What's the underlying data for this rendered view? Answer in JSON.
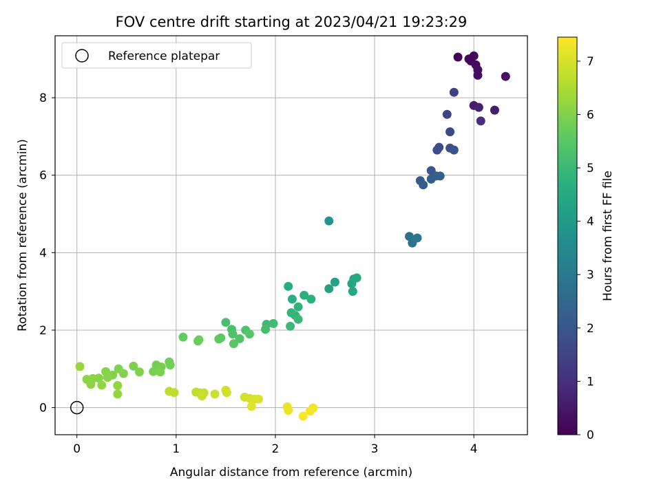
{
  "chart_data": {
    "type": "scatter",
    "title": "FOV centre drift starting at 2023/04/21 19:23:29",
    "xlabel": "Angular distance from reference (arcmin)",
    "ylabel": "Rotation from reference (arcmin)",
    "xlim": [
      -0.22,
      4.54
    ],
    "ylim": [
      -0.7,
      9.6
    ],
    "xticks": [
      0,
      1,
      2,
      3,
      4
    ],
    "xtick_labels": [
      "0",
      "1",
      "2",
      "3",
      "4"
    ],
    "yticks": [
      0,
      2,
      4,
      6,
      8
    ],
    "ytick_labels": [
      "0",
      "2",
      "4",
      "6",
      "8"
    ],
    "grid": true,
    "colormap": "viridis",
    "colorbar": {
      "label": "Hours from first FF file",
      "range": [
        0,
        7.45
      ],
      "ticks": [
        0,
        1,
        2,
        3,
        4,
        5,
        6,
        7
      ],
      "tick_labels": [
        "0",
        "1",
        "2",
        "3",
        "4",
        "5",
        "6",
        "7"
      ]
    },
    "legend": {
      "position": "top-left",
      "entries": [
        {
          "label": "Reference platepar",
          "marker": "open-circle"
        }
      ]
    },
    "reference_point": {
      "x": 0,
      "y": 0
    },
    "points": [
      {
        "x": 3.84,
        "y": 9.05,
        "t": 0.05
      },
      {
        "x": 3.95,
        "y": 9.0,
        "t": 0.1
      },
      {
        "x": 4.0,
        "y": 9.08,
        "t": 0.12
      },
      {
        "x": 3.97,
        "y": 8.95,
        "t": 0.15
      },
      {
        "x": 4.02,
        "y": 8.85,
        "t": 0.2
      },
      {
        "x": 4.04,
        "y": 8.72,
        "t": 0.25
      },
      {
        "x": 4.04,
        "y": 8.58,
        "t": 0.3
      },
      {
        "x": 4.32,
        "y": 8.55,
        "t": 0.35
      },
      {
        "x": 4.21,
        "y": 7.68,
        "t": 0.55
      },
      {
        "x": 4.0,
        "y": 7.8,
        "t": 0.6
      },
      {
        "x": 4.05,
        "y": 7.75,
        "t": 0.7
      },
      {
        "x": 4.07,
        "y": 7.4,
        "t": 1.0
      },
      {
        "x": 3.8,
        "y": 8.14,
        "t": 1.4
      },
      {
        "x": 3.73,
        "y": 7.57,
        "t": 1.5
      },
      {
        "x": 3.76,
        "y": 7.12,
        "t": 1.6
      },
      {
        "x": 3.65,
        "y": 6.72,
        "t": 1.7
      },
      {
        "x": 3.63,
        "y": 6.65,
        "t": 1.75
      },
      {
        "x": 3.76,
        "y": 6.7,
        "t": 1.8
      },
      {
        "x": 3.8,
        "y": 6.65,
        "t": 1.85
      },
      {
        "x": 3.57,
        "y": 6.12,
        "t": 2.0
      },
      {
        "x": 3.46,
        "y": 5.86,
        "t": 2.1
      },
      {
        "x": 3.49,
        "y": 5.75,
        "t": 2.15
      },
      {
        "x": 3.57,
        "y": 5.9,
        "t": 2.2
      },
      {
        "x": 3.62,
        "y": 5.98,
        "t": 2.25
      },
      {
        "x": 3.66,
        "y": 5.98,
        "t": 2.3
      },
      {
        "x": 3.35,
        "y": 4.42,
        "t": 2.8
      },
      {
        "x": 3.38,
        "y": 4.25,
        "t": 2.85
      },
      {
        "x": 3.43,
        "y": 4.38,
        "t": 2.9
      },
      {
        "x": 2.54,
        "y": 4.82,
        "t": 3.9
      },
      {
        "x": 2.54,
        "y": 3.07,
        "t": 4.2
      },
      {
        "x": 2.6,
        "y": 3.24,
        "t": 4.25
      },
      {
        "x": 2.77,
        "y": 3.2,
        "t": 4.3
      },
      {
        "x": 2.79,
        "y": 3.32,
        "t": 4.35
      },
      {
        "x": 2.78,
        "y": 3.0,
        "t": 4.4
      },
      {
        "x": 2.82,
        "y": 3.35,
        "t": 4.45
      },
      {
        "x": 2.13,
        "y": 3.13,
        "t": 4.6
      },
      {
        "x": 2.17,
        "y": 2.8,
        "t": 4.65
      },
      {
        "x": 2.29,
        "y": 2.9,
        "t": 4.7
      },
      {
        "x": 2.36,
        "y": 2.8,
        "t": 4.75
      },
      {
        "x": 2.23,
        "y": 2.6,
        "t": 4.8
      },
      {
        "x": 2.16,
        "y": 2.45,
        "t": 4.85
      },
      {
        "x": 2.2,
        "y": 2.38,
        "t": 4.9
      },
      {
        "x": 2.23,
        "y": 2.28,
        "t": 4.95
      },
      {
        "x": 2.15,
        "y": 2.1,
        "t": 5.0
      },
      {
        "x": 1.91,
        "y": 2.15,
        "t": 5.05
      },
      {
        "x": 1.98,
        "y": 2.17,
        "t": 5.1
      },
      {
        "x": 1.9,
        "y": 2.02,
        "t": 5.15
      },
      {
        "x": 1.5,
        "y": 2.2,
        "t": 5.2
      },
      {
        "x": 1.56,
        "y": 2.02,
        "t": 5.25
      },
      {
        "x": 1.7,
        "y": 2.0,
        "t": 5.3
      },
      {
        "x": 1.57,
        "y": 1.9,
        "t": 5.35
      },
      {
        "x": 1.64,
        "y": 1.78,
        "t": 5.4
      },
      {
        "x": 1.74,
        "y": 1.9,
        "t": 5.45
      },
      {
        "x": 1.58,
        "y": 1.65,
        "t": 5.5
      },
      {
        "x": 1.45,
        "y": 1.8,
        "t": 5.55
      },
      {
        "x": 1.43,
        "y": 1.77,
        "t": 5.6
      },
      {
        "x": 1.07,
        "y": 1.82,
        "t": 5.65
      },
      {
        "x": 1.22,
        "y": 1.72,
        "t": 5.7
      },
      {
        "x": 1.23,
        "y": 1.75,
        "t": 5.72
      },
      {
        "x": 0.93,
        "y": 1.18,
        "t": 5.8
      },
      {
        "x": 0.94,
        "y": 1.1,
        "t": 5.82
      },
      {
        "x": 0.8,
        "y": 1.1,
        "t": 5.85
      },
      {
        "x": 0.85,
        "y": 1.05,
        "t": 5.88
      },
      {
        "x": 0.77,
        "y": 0.93,
        "t": 5.9
      },
      {
        "x": 0.84,
        "y": 0.92,
        "t": 5.92
      },
      {
        "x": 0.57,
        "y": 1.07,
        "t": 5.95
      },
      {
        "x": 0.63,
        "y": 0.92,
        "t": 5.97
      },
      {
        "x": 0.42,
        "y": 1.0,
        "t": 6.0
      },
      {
        "x": 0.47,
        "y": 0.88,
        "t": 6.02
      },
      {
        "x": 0.36,
        "y": 0.84,
        "t": 6.04
      },
      {
        "x": 0.29,
        "y": 0.93,
        "t": 6.06
      },
      {
        "x": 0.31,
        "y": 0.78,
        "t": 6.08
      },
      {
        "x": 0.22,
        "y": 0.76,
        "t": 6.1
      },
      {
        "x": 0.16,
        "y": 0.75,
        "t": 6.12
      },
      {
        "x": 0.1,
        "y": 0.73,
        "t": 6.14
      },
      {
        "x": 0.14,
        "y": 0.6,
        "t": 6.16
      },
      {
        "x": 0.25,
        "y": 0.58,
        "t": 6.18
      },
      {
        "x": 0.41,
        "y": 0.57,
        "t": 6.2
      },
      {
        "x": 0.41,
        "y": 0.35,
        "t": 6.22
      },
      {
        "x": 0.03,
        "y": 1.06,
        "t": 6.25
      },
      {
        "x": 0.93,
        "y": 0.42,
        "t": 6.7
      },
      {
        "x": 0.98,
        "y": 0.39,
        "t": 6.72
      },
      {
        "x": 1.2,
        "y": 0.4,
        "t": 6.75
      },
      {
        "x": 1.24,
        "y": 0.38,
        "t": 6.78
      },
      {
        "x": 1.28,
        "y": 0.38,
        "t": 6.8
      },
      {
        "x": 1.26,
        "y": 0.3,
        "t": 6.82
      },
      {
        "x": 1.39,
        "y": 0.35,
        "t": 6.85
      },
      {
        "x": 1.5,
        "y": 0.45,
        "t": 6.88
      },
      {
        "x": 1.51,
        "y": 0.39,
        "t": 6.9
      },
      {
        "x": 1.69,
        "y": 0.27,
        "t": 6.95
      },
      {
        "x": 1.74,
        "y": 0.24,
        "t": 7.0
      },
      {
        "x": 1.79,
        "y": 0.22,
        "t": 7.02
      },
      {
        "x": 1.83,
        "y": 0.22,
        "t": 7.05
      },
      {
        "x": 1.76,
        "y": 0.03,
        "t": 7.1
      },
      {
        "x": 2.12,
        "y": 0.02,
        "t": 7.2
      },
      {
        "x": 2.13,
        "y": -0.07,
        "t": 7.25
      },
      {
        "x": 2.38,
        "y": -0.01,
        "t": 7.3
      },
      {
        "x": 2.35,
        "y": -0.09,
        "t": 7.35
      },
      {
        "x": 2.28,
        "y": -0.22,
        "t": 7.4
      }
    ]
  }
}
